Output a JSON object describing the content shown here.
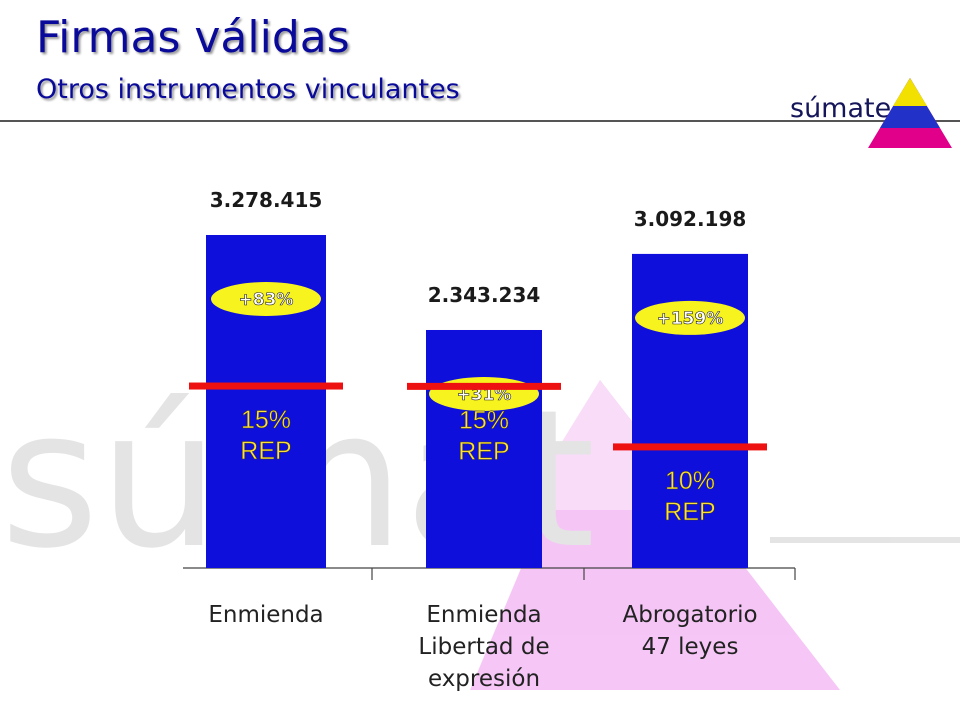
{
  "header": {
    "title": "Firmas válidas",
    "subtitle": "Otros instrumentos vinculantes",
    "logo": "súmate"
  },
  "colors": {
    "bar": "#0f0fdc",
    "threshold": "#ee1111",
    "badge": "#f7f31e",
    "title": "#0a0a9a"
  },
  "chart_data": {
    "type": "bar",
    "categories": [
      [
        "Enmienda"
      ],
      [
        "Enmienda",
        "Libertad de",
        "expresión"
      ],
      [
        "Abrogatorio",
        "47 leyes"
      ]
    ],
    "values": [
      3278415,
      2343234,
      3092198
    ],
    "value_labels": [
      "3.278.415",
      "2.343.234",
      "3.092.198"
    ],
    "thresholds": [
      1791477,
      1788097,
      1192076
    ],
    "threshold_labels": [
      [
        "15%",
        "REP"
      ],
      [
        "15%",
        "REP"
      ],
      [
        "10%",
        "REP"
      ]
    ],
    "badges": [
      "+83%",
      "+31%",
      "+159%"
    ],
    "ylim": [
      0,
      3500000
    ],
    "grid": false,
    "legend": "none"
  }
}
